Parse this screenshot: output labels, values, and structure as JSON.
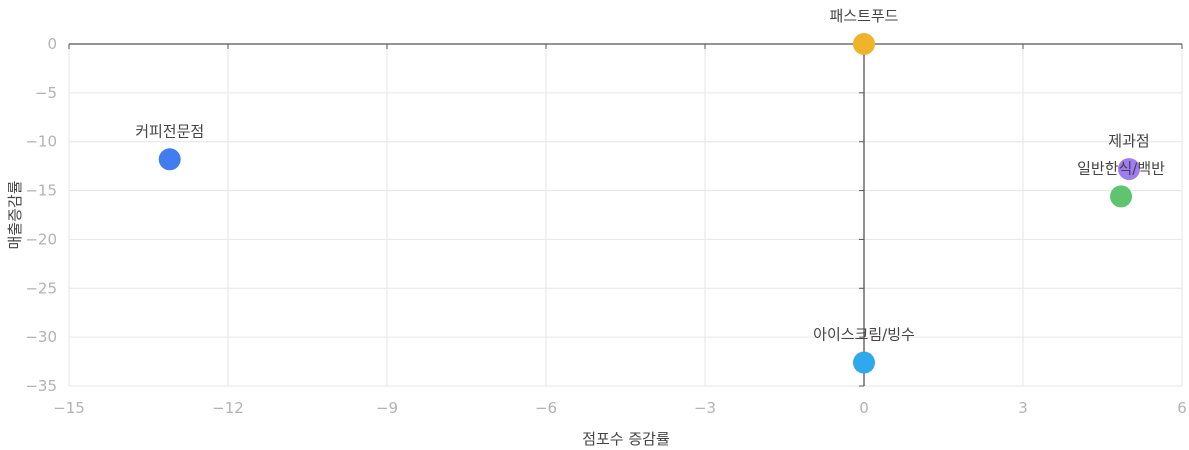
{
  "chart_data": {
    "type": "scatter",
    "title": "",
    "xlabel": "점포수 증감률",
    "ylabel": "매출증감률",
    "xlim": [
      -15,
      6
    ],
    "ylim": [
      -35,
      0
    ],
    "x_ticks": [
      -15,
      -12,
      -9,
      -6,
      -3,
      0,
      3,
      6
    ],
    "y_ticks": [
      0,
      -5,
      -10,
      -15,
      -20,
      -25,
      -30,
      -35
    ],
    "grid": true,
    "legend": "none",
    "points": [
      {
        "label": "패스트푸드",
        "x": 0.0,
        "y": 0.0,
        "color": "#f0b429"
      },
      {
        "label": "커피전문점",
        "x": -13.1,
        "y": -11.8,
        "color": "#3f7df0"
      },
      {
        "label": "제과점",
        "x": 5.0,
        "y": -12.8,
        "color": "#a07cf0"
      },
      {
        "label": "일반한식/백반",
        "x": 4.85,
        "y": -15.6,
        "color": "#5ec46e"
      },
      {
        "label": "아이스크림/빙수",
        "x": 0.0,
        "y": -32.6,
        "color": "#2fa8ee"
      }
    ]
  }
}
